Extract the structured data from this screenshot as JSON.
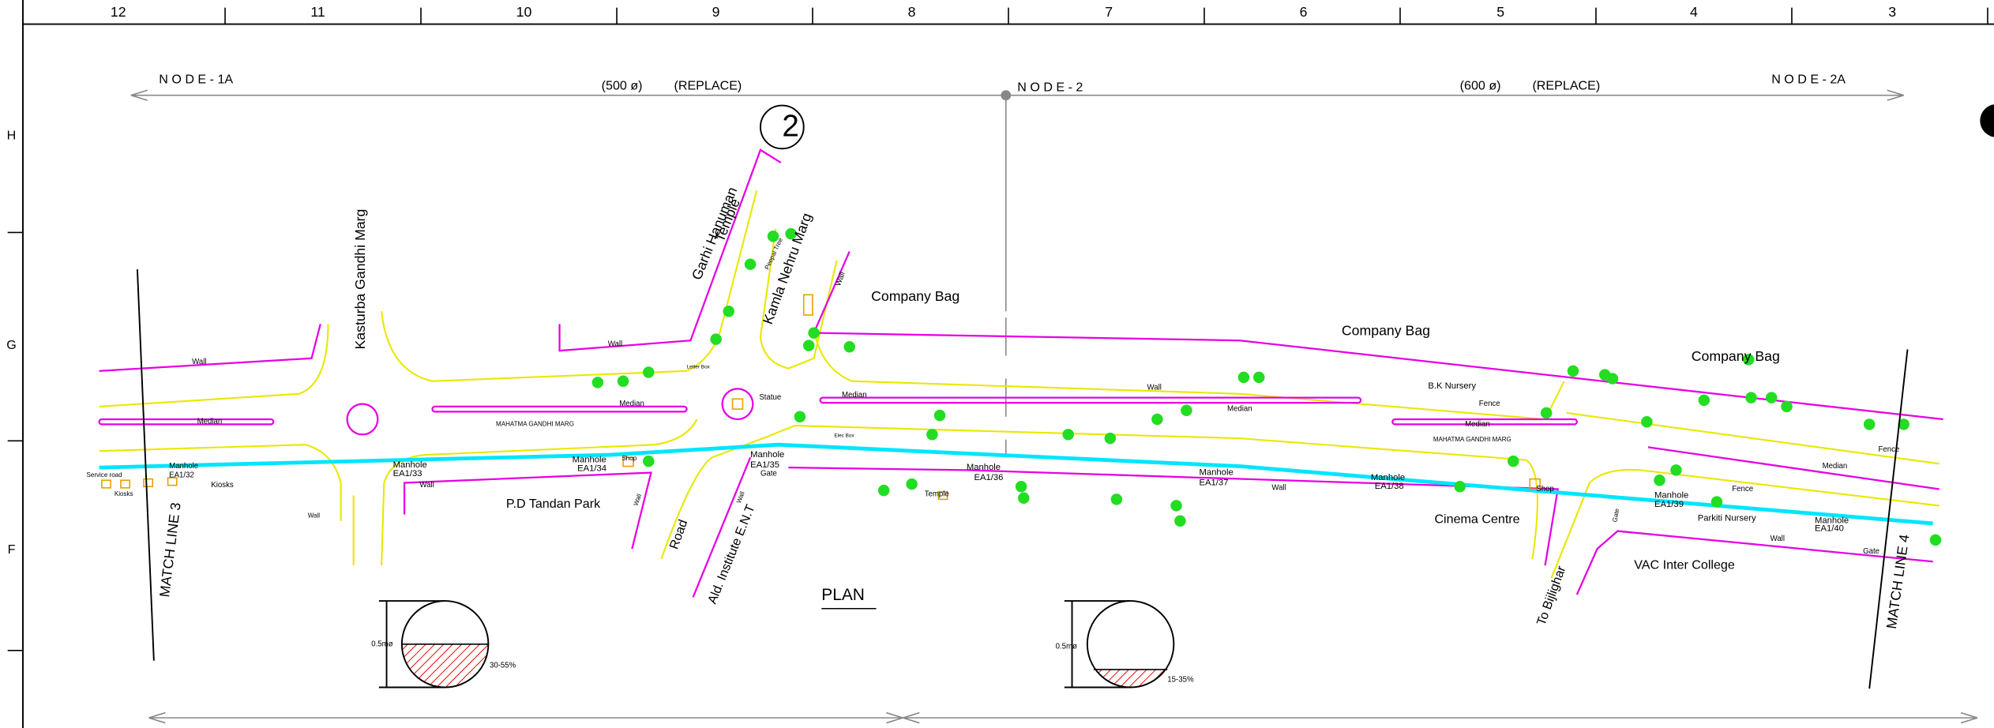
{
  "ruler": {
    "columns": [
      "12",
      "11",
      "10",
      "9",
      "8",
      "7",
      "6",
      "5",
      "4",
      "3"
    ],
    "rows": [
      "H",
      "G",
      "F"
    ]
  },
  "labels": [
    "N O D E - 1A",
    "(500 ø)",
    "(REPLACE)",
    "N O D E - 2",
    "(600 ø)",
    "(REPLACE)",
    "N O D E - 2A",
    "2",
    "Garhi Hanuman",
    "Temple",
    "Kamla Nehru Marg",
    "Kasturba Gandhi Marg",
    "Company Bag",
    "Company Bag",
    "Company Bag",
    "Wall",
    "Wall",
    "Wall",
    "Median",
    "MAHATMA GANDHI MARG",
    "Median",
    "Statue",
    "Median",
    "Wall",
    "Median",
    "B.K Nursery",
    "Fence",
    "Median",
    "MAHATMA GANDHI MARG",
    "Fence",
    "Median",
    "Service road",
    "Kiosks",
    "Manhole",
    "EA1/32",
    "Kiosks",
    "Wall",
    "Manhole",
    "EA1/33",
    "Wall",
    "P.D Tandan Park",
    "Manhole",
    "EA1/34",
    "Shop",
    "Wall",
    "Road",
    "Ald. Institute E.N.T",
    "Manhole",
    "EA1/35",
    "Gate",
    "Wall",
    "Manhole",
    "EA1/36",
    "Temple",
    "Manhole",
    "EA1/37",
    "Wall",
    "Manhole",
    "EA1/38",
    "Cinema Centre",
    "Shop",
    "To Bijlighar",
    "Fence",
    "Manhole",
    "EA1/39",
    "Parkiti Nursery",
    "Manhole",
    "EA1/40",
    "Wall",
    "Gate",
    "Gate",
    "VAC Inter College",
    "MATCH LINE 3",
    "MATCH LINE 4",
    "PLAN",
    "0.5mø",
    "30-55%",
    "0.5mø",
    "15-35%",
    "Peepal Tree",
    "Elec Box",
    "Letter Box"
  ]
}
